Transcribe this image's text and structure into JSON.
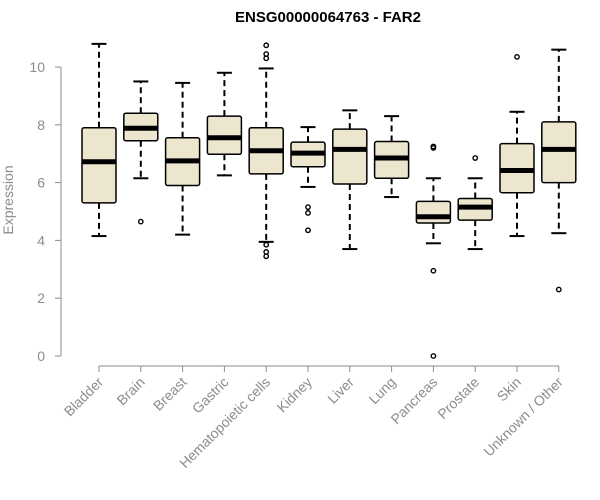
{
  "chart_data": {
    "type": "boxplot",
    "title": "ENSG00000064763 - FAR2",
    "xlabel": "",
    "ylabel": "Expression",
    "ylim": [
      0,
      10.8
    ],
    "yticks": [
      0,
      2,
      4,
      6,
      8,
      10
    ],
    "colors": {
      "box_fill": "#ede6cf",
      "stroke": "#000000",
      "axis_text": "#8c8c8c"
    },
    "categories": [
      "Bladder",
      "Brain",
      "Breast",
      "Gastric",
      "Hematopoietic cells",
      "Kidney",
      "Liver",
      "Lung",
      "Pancreas",
      "Prostate",
      "Skin",
      "Unknown / Other"
    ],
    "boxes": [
      {
        "min": 4.15,
        "q1": 5.3,
        "median": 6.72,
        "q3": 7.9,
        "max": 10.8,
        "outliers": []
      },
      {
        "min": 6.15,
        "q1": 7.45,
        "median": 7.88,
        "q3": 8.4,
        "max": 9.5,
        "outliers": [
          4.65
        ]
      },
      {
        "min": 4.2,
        "q1": 5.9,
        "median": 6.75,
        "q3": 7.55,
        "max": 9.45,
        "outliers": []
      },
      {
        "min": 6.25,
        "q1": 6.98,
        "median": 7.55,
        "q3": 8.3,
        "max": 9.8,
        "outliers": []
      },
      {
        "min": 3.95,
        "q1": 6.3,
        "median": 7.1,
        "q3": 7.9,
        "max": 9.95,
        "outliers": [
          10.75,
          10.45,
          10.3,
          3.85,
          3.6,
          3.45
        ]
      },
      {
        "min": 5.85,
        "q1": 6.55,
        "median": 7.02,
        "q3": 7.4,
        "max": 7.92,
        "outliers": [
          5.15,
          4.95,
          4.35
        ]
      },
      {
        "min": 3.7,
        "q1": 5.95,
        "median": 7.15,
        "q3": 7.85,
        "max": 8.5,
        "outliers": []
      },
      {
        "min": 5.5,
        "q1": 6.15,
        "median": 6.85,
        "q3": 7.42,
        "max": 8.3,
        "outliers": []
      },
      {
        "min": 3.9,
        "q1": 4.6,
        "median": 4.82,
        "q3": 5.35,
        "max": 6.15,
        "outliers": [
          7.25,
          7.2,
          2.95,
          0.0
        ]
      },
      {
        "min": 3.7,
        "q1": 4.7,
        "median": 5.15,
        "q3": 5.45,
        "max": 6.15,
        "outliers": [
          6.85
        ]
      },
      {
        "min": 4.15,
        "q1": 5.65,
        "median": 6.42,
        "q3": 7.35,
        "max": 8.45,
        "outliers": [
          10.35
        ]
      },
      {
        "min": 4.25,
        "q1": 6.0,
        "median": 7.15,
        "q3": 8.1,
        "max": 10.6,
        "outliers": [
          2.3
        ]
      }
    ]
  }
}
